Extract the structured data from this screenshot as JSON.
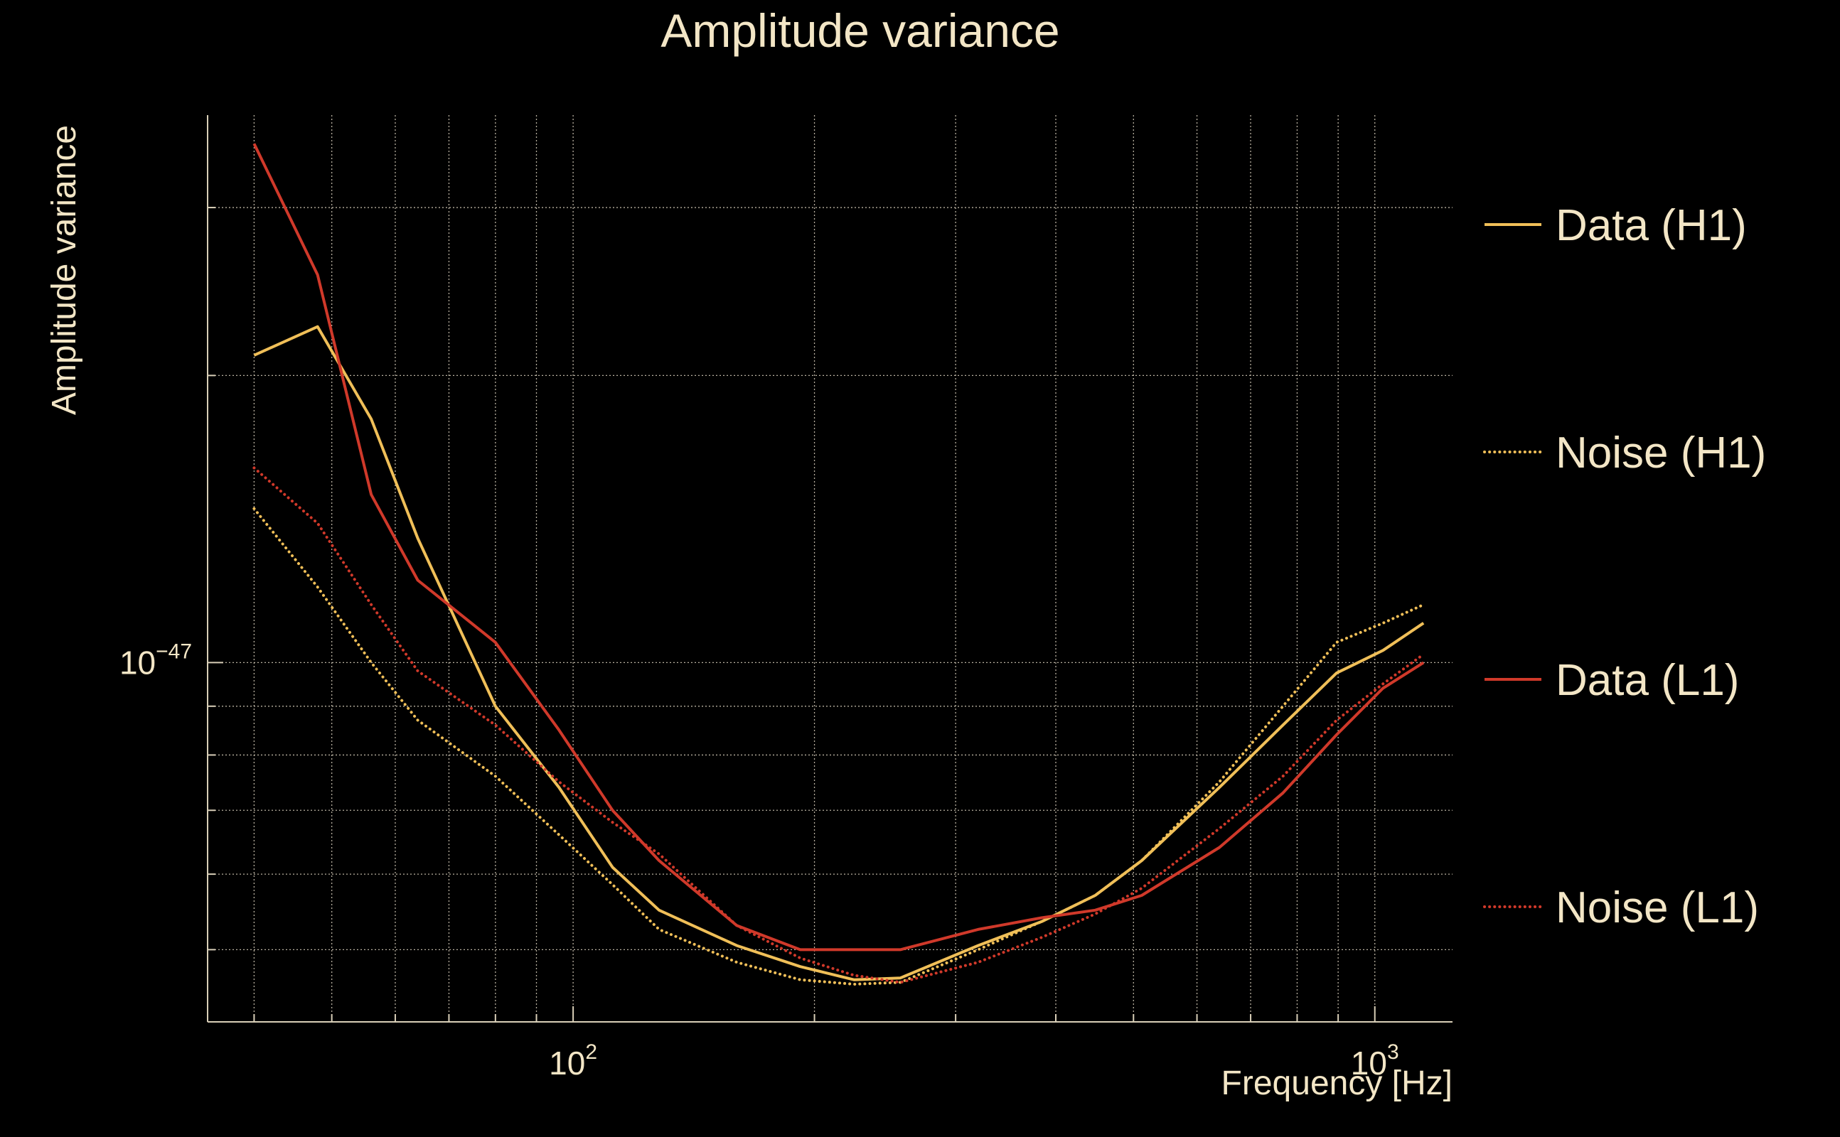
{
  "chart_data": {
    "type": "line",
    "title": "Amplitude variance",
    "xlabel": "Frequency [Hz]",
    "ylabel": "Amplitude variance",
    "xscale": "log",
    "yscale": "log",
    "xlim": [
      35,
      1250
    ],
    "ylim": [
      4.2e-48,
      3.75e-47
    ],
    "grid": true,
    "legend_position": "right",
    "x_ticks": [
      {
        "value": 100,
        "base": "10",
        "exp": "2"
      },
      {
        "value": 1000,
        "base": "10",
        "exp": "3"
      }
    ],
    "y_ticks": [
      {
        "value": 1e-47,
        "base": "10",
        "exp": "−47"
      }
    ],
    "x": [
      40,
      48,
      56,
      64,
      80,
      96,
      112,
      128,
      160,
      192,
      224,
      256,
      320,
      384,
      448,
      512,
      640,
      768,
      896,
      1024,
      1150
    ],
    "series": [
      {
        "name": "Data (H1)",
        "color": "#f0bf58",
        "style": "solid",
        "values": [
          2.1e-47,
          2.25e-47,
          1.8e-47,
          1.35e-47,
          9e-48,
          7.4e-48,
          6.1e-48,
          5.5e-48,
          5.05e-48,
          4.8e-48,
          4.65e-48,
          4.67e-48,
          5.05e-48,
          5.35e-48,
          5.7e-48,
          6.2e-48,
          7.4e-48,
          8.6e-48,
          9.75e-48,
          1.03e-47,
          1.1e-47
        ]
      },
      {
        "name": "Noise (H1)",
        "color": "#f0bf58",
        "style": "dotted",
        "values": [
          1.45e-47,
          1.2e-47,
          1e-47,
          8.7e-48,
          7.6e-48,
          6.6e-48,
          5.85e-48,
          5.25e-48,
          4.85e-48,
          4.65e-48,
          4.6e-48,
          4.62e-48,
          5e-48,
          5.35e-48,
          5.7e-48,
          6.2e-48,
          7.5e-48,
          9e-48,
          1.05e-47,
          1.1e-47,
          1.15e-47
        ]
      },
      {
        "name": "Data (L1)",
        "color": "#d0392a",
        "style": "solid",
        "values": [
          3.5e-47,
          2.55e-47,
          1.5e-47,
          1.22e-47,
          1.05e-47,
          8.5e-48,
          7e-48,
          6.2e-48,
          5.3e-48,
          5e-48,
          5e-48,
          5e-48,
          5.25e-48,
          5.4e-48,
          5.5e-48,
          5.7e-48,
          6.4e-48,
          7.3e-48,
          8.4e-48,
          9.4e-48,
          1e-47
        ]
      },
      {
        "name": "Noise (L1)",
        "color": "#d0392a",
        "style": "dotted",
        "values": [
          1.6e-47,
          1.4e-47,
          1.15e-47,
          9.8e-48,
          8.6e-48,
          7.5e-48,
          6.8e-48,
          6.3e-48,
          5.3e-48,
          4.9e-48,
          4.7e-48,
          4.62e-48,
          4.85e-48,
          5.15e-48,
          5.45e-48,
          5.8e-48,
          6.7e-48,
          7.6e-48,
          8.7e-48,
          9.5e-48,
          1.02e-47
        ]
      }
    ]
  }
}
